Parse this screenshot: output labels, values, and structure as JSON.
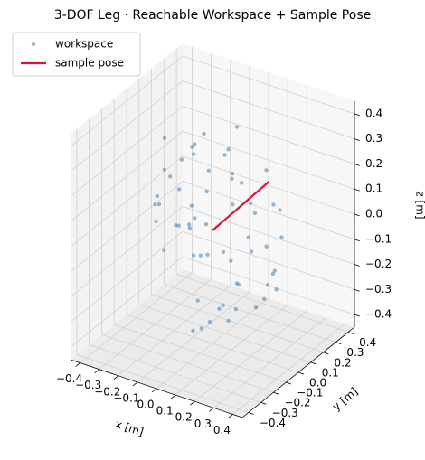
{
  "chart_data": {
    "type": "scatter3d",
    "title": "3-DOF Leg  ·  Reachable Workspace + Sample Pose",
    "xlabel": "x [m]",
    "ylabel": "y [m]",
    "zlabel": "z [m]",
    "xlim": [
      -0.45,
      0.45
    ],
    "ylim": [
      -0.45,
      0.45
    ],
    "zlim": [
      -0.45,
      0.45
    ],
    "xticks": [
      {
        "value": -0.4,
        "label": "−0.4"
      },
      {
        "value": -0.3,
        "label": "−0.3"
      },
      {
        "value": -0.2,
        "label": "−0.2"
      },
      {
        "value": -0.1,
        "label": "−0.1"
      },
      {
        "value": 0,
        "label": "0.0"
      },
      0.1,
      0.2,
      0.3,
      0.4
    ],
    "yticks": [
      {
        "value": -0.4,
        "label": "−0.4"
      },
      {
        "value": -0.3,
        "label": "−0.3"
      },
      {
        "value": -0.2,
        "label": "−0.2"
      },
      {
        "value": -0.1,
        "label": "−0.1"
      },
      {
        "value": 0,
        "label": "0.0"
      },
      0.1,
      0.2,
      0.3,
      0.4
    ],
    "zticks": [
      {
        "value": -0.4,
        "label": "−0.4"
      },
      {
        "value": -0.3,
        "label": "−0.3"
      },
      {
        "value": -0.2,
        "label": "−0.2"
      },
      {
        "value": -0.1,
        "label": "−0.1"
      },
      {
        "value": 0,
        "label": "0.0"
      },
      0.1,
      0.2,
      0.3,
      0.4
    ],
    "grid": true,
    "legend": "upper left",
    "series": [
      {
        "name": "workspace",
        "color": "#4682b4",
        "kind": "points",
        "x": [
          0.12,
          -0.21,
          0.05,
          0.31,
          -0.08,
          0.18,
          -0.27,
          0.02,
          0.24,
          -0.15,
          0.09,
          -0.32,
          0.16,
          -0.04,
          0.28,
          -0.19,
          0.07,
          -0.11,
          0.21,
          -0.25,
          0.01,
          0.14,
          -0.06,
          0.33,
          -0.17,
          0.1,
          -0.29,
          0.04,
          0.19,
          -0.13,
          0.26,
          -0.02,
          0.08,
          -0.22,
          0.15,
          -0.09,
          0.3,
          -0.18,
          0.03,
          0.11,
          -0.26,
          0.2,
          -0.05,
          0.13,
          -0.14,
          0.06,
          -0.3,
          0.23,
          -0.01,
          0.17,
          -0.2,
          0.27,
          -0.07,
          0.0,
          0.22,
          -0.16,
          0.09,
          -0.24,
          0.14,
          -0.03
        ],
        "y": [
          0.05,
          0.14,
          -0.22,
          0.08,
          0.27,
          -0.12,
          -0.03,
          0.31,
          -0.18,
          0.2,
          -0.29,
          0.1,
          0.17,
          -0.09,
          -0.14,
          0.24,
          0.02,
          -0.26,
          0.11,
          -0.07,
          0.18,
          -0.31,
          0.22,
          -0.02,
          -0.2,
          0.28,
          0.06,
          -0.15,
          0.25,
          0.13,
          -0.05,
          -0.24,
          0.19,
          0.09,
          -0.27,
          0.3,
          0.04,
          -0.11,
          0.15,
          -0.19,
          0.23,
          0.0,
          -0.08,
          0.29,
          0.07,
          -0.21,
          0.12,
          0.16,
          -0.28,
          -0.1,
          0.26,
          0.03,
          -0.16,
          0.21,
          -0.25,
          0.08,
          -0.04,
          0.18,
          -0.13,
          0.1
        ],
        "z": [
          0.2,
          -0.1,
          0.15,
          0.02,
          -0.25,
          0.3,
          0.08,
          -0.05,
          -0.18,
          0.12,
          0.04,
          -0.2,
          -0.3,
          0.33,
          0.1,
          -0.12,
          -0.35,
          0.18,
          0.25,
          0.0,
          -0.28,
          0.06,
          0.22,
          -0.08,
          0.14,
          -0.15,
          0.27,
          -0.32,
          0.03,
          0.3,
          -0.22,
          0.11,
          -0.14,
          0.19,
          0.05,
          -0.04,
          -0.1,
          0.24,
          0.36,
          -0.26,
          -0.06,
          0.16,
          -0.38,
          0.02,
          0.28,
          -0.18,
          0.09,
          -0.24,
          0.13,
          0.31,
          0.0,
          -0.16,
          0.21,
          -0.3,
          0.07,
          0.26,
          0.34,
          -0.11,
          -0.21,
          -0.36
        ]
      },
      {
        "name": "sample pose",
        "color": "#dc143c",
        "kind": "line",
        "x": [
          0.0,
          0.05,
          0.1
        ],
        "y": [
          0.0,
          0.15,
          0.3
        ],
        "z": [
          0.0,
          0.05,
          0.1
        ]
      }
    ]
  }
}
